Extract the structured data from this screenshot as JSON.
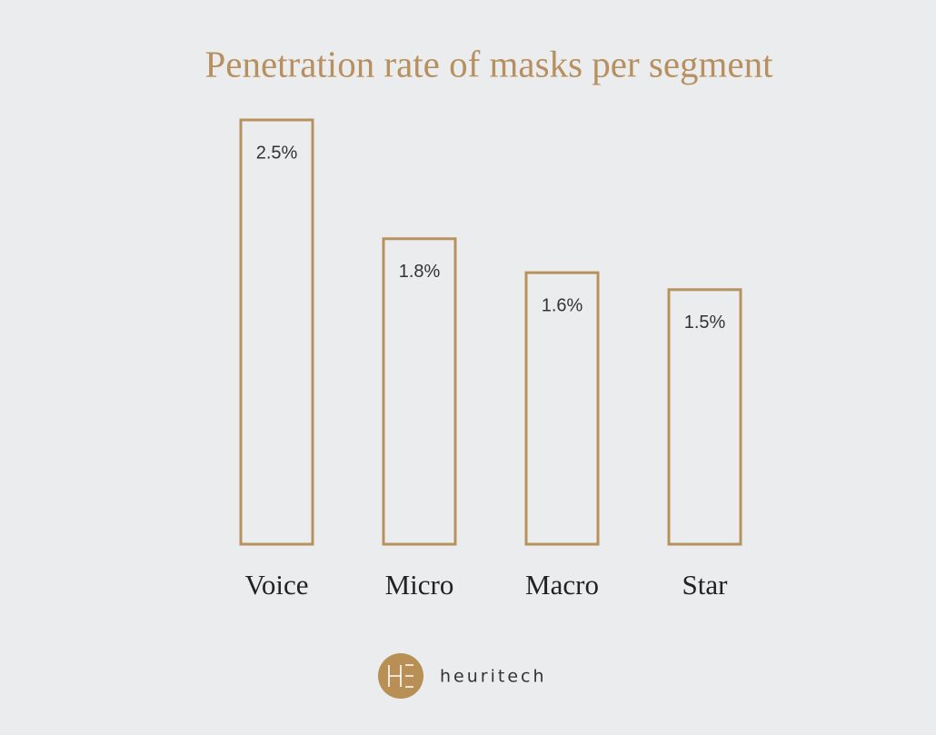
{
  "chart_data": {
    "type": "bar",
    "title": "Penetration rate of masks per segment",
    "categories": [
      "Voice",
      "Micro",
      "Macro",
      "Star"
    ],
    "values": [
      2.5,
      1.8,
      1.6,
      1.5
    ],
    "value_labels": [
      "2.5%",
      "1.8%",
      "1.6%",
      "1.5%"
    ],
    "color": "#b8925e"
  },
  "footer": {
    "brand": "heuritech"
  }
}
